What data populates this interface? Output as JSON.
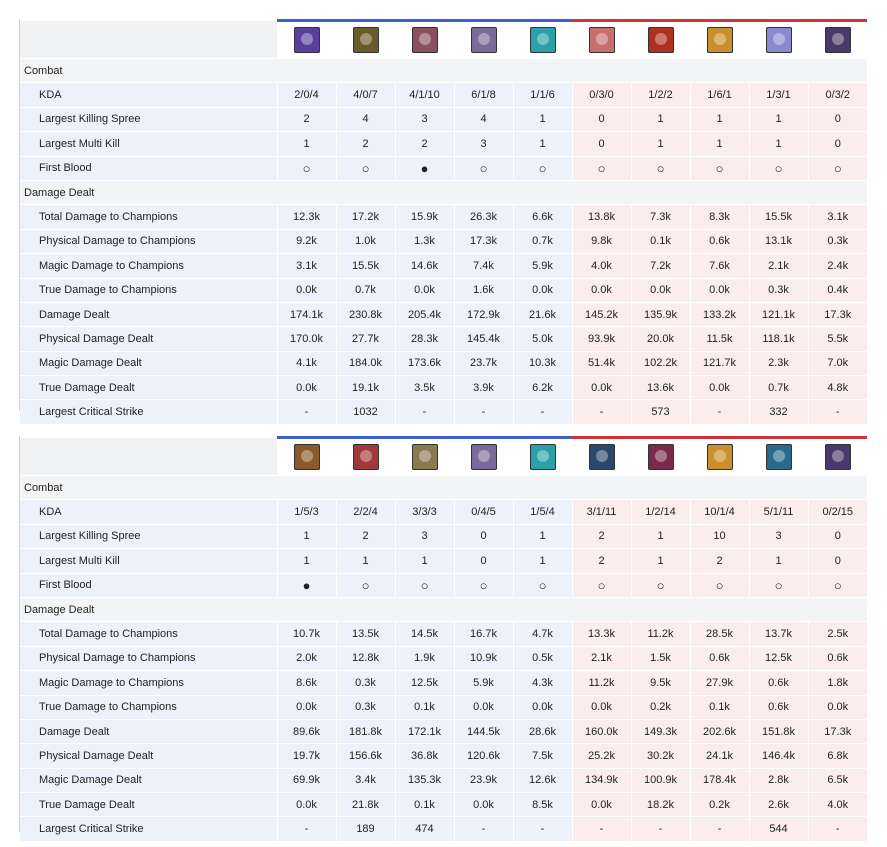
{
  "colors": {
    "blue_side": "#3d5fd0",
    "red_side": "#d0333b",
    "blue_cell": "#ecf1fa",
    "red_cell": "#fbeded",
    "section_bg": "#f3f4f6"
  },
  "first_blood_symbols": {
    "yes": "●",
    "no": "○"
  },
  "tables": [
    {
      "champion_icons": [
        {
          "icon": "champion-portrait-icon",
          "color": "#5a3f9e",
          "side": "blue"
        },
        {
          "icon": "champion-portrait-icon",
          "color": "#6b5a2a",
          "side": "blue"
        },
        {
          "icon": "champion-portrait-icon",
          "color": "#8a5060",
          "side": "blue"
        },
        {
          "icon": "champion-portrait-icon",
          "color": "#7a6a9a",
          "side": "blue"
        },
        {
          "icon": "champion-portrait-icon",
          "color": "#2aa0a8",
          "side": "blue"
        },
        {
          "icon": "champion-portrait-icon",
          "color": "#c87070",
          "side": "red"
        },
        {
          "icon": "champion-portrait-icon",
          "color": "#b03020",
          "side": "red"
        },
        {
          "icon": "champion-portrait-icon",
          "color": "#c8902a",
          "side": "red"
        },
        {
          "icon": "champion-portrait-icon",
          "color": "#8a8ad0",
          "side": "red"
        },
        {
          "icon": "champion-portrait-icon",
          "color": "#4a3a6a",
          "side": "red"
        }
      ],
      "sections": [
        {
          "title": "Combat",
          "rows": [
            {
              "label": "KDA",
              "values": [
                "2/0/4",
                "4/0/7",
                "4/1/10",
                "6/1/8",
                "1/1/6",
                "0/3/0",
                "1/2/2",
                "1/6/1",
                "1/3/1",
                "0/3/2"
              ]
            },
            {
              "label": "Largest Killing Spree",
              "values": [
                "2",
                "4",
                "3",
                "4",
                "1",
                "0",
                "1",
                "1",
                "1",
                "0"
              ]
            },
            {
              "label": "Largest Multi Kill",
              "values": [
                "1",
                "2",
                "2",
                "3",
                "1",
                "0",
                "1",
                "1",
                "1",
                "0"
              ]
            },
            {
              "label": "First Blood",
              "values": [
                "○",
                "○",
                "●",
                "○",
                "○",
                "○",
                "○",
                "○",
                "○",
                "○"
              ]
            }
          ]
        },
        {
          "title": "Damage Dealt",
          "rows": [
            {
              "label": "Total Damage to Champions",
              "values": [
                "12.3k",
                "17.2k",
                "15.9k",
                "26.3k",
                "6.6k",
                "13.8k",
                "7.3k",
                "8.3k",
                "15.5k",
                "3.1k"
              ]
            },
            {
              "label": "Physical Damage to Champions",
              "values": [
                "9.2k",
                "1.0k",
                "1.3k",
                "17.3k",
                "0.7k",
                "9.8k",
                "0.1k",
                "0.6k",
                "13.1k",
                "0.3k"
              ]
            },
            {
              "label": "Magic Damage to Champions",
              "values": [
                "3.1k",
                "15.5k",
                "14.6k",
                "7.4k",
                "5.9k",
                "4.0k",
                "7.2k",
                "7.6k",
                "2.1k",
                "2.4k"
              ]
            },
            {
              "label": "True Damage to Champions",
              "values": [
                "0.0k",
                "0.7k",
                "0.0k",
                "1.6k",
                "0.0k",
                "0.0k",
                "0.0k",
                "0.0k",
                "0.3k",
                "0.4k"
              ]
            },
            {
              "label": "Damage Dealt",
              "values": [
                "174.1k",
                "230.8k",
                "205.4k",
                "172.9k",
                "21.6k",
                "145.2k",
                "135.9k",
                "133.2k",
                "121.1k",
                "17.3k"
              ]
            },
            {
              "label": "Physical Damage Dealt",
              "values": [
                "170.0k",
                "27.7k",
                "28.3k",
                "145.4k",
                "5.0k",
                "93.9k",
                "20.0k",
                "11.5k",
                "118.1k",
                "5.5k"
              ]
            },
            {
              "label": "Magic Damage Dealt",
              "values": [
                "4.1k",
                "184.0k",
                "173.6k",
                "23.7k",
                "10.3k",
                "51.4k",
                "102.2k",
                "121.7k",
                "2.3k",
                "7.0k"
              ]
            },
            {
              "label": "True Damage Dealt",
              "values": [
                "0.0k",
                "19.1k",
                "3.5k",
                "3.9k",
                "6.2k",
                "0.0k",
                "13.6k",
                "0.0k",
                "0.7k",
                "4.8k"
              ]
            },
            {
              "label": "Largest Critical Strike",
              "values": [
                "-",
                "1032",
                "-",
                "-",
                "-",
                "-",
                "573",
                "-",
                "332",
                "-"
              ]
            }
          ]
        }
      ]
    },
    {
      "champion_icons": [
        {
          "icon": "champion-portrait-icon",
          "color": "#8a5a2a",
          "side": "blue"
        },
        {
          "icon": "champion-portrait-icon",
          "color": "#a03a3a",
          "side": "blue"
        },
        {
          "icon": "champion-portrait-icon",
          "color": "#8a7a50",
          "side": "blue"
        },
        {
          "icon": "champion-portrait-icon",
          "color": "#7a6a9a",
          "side": "blue"
        },
        {
          "icon": "champion-portrait-icon",
          "color": "#2aa0a8",
          "side": "blue"
        },
        {
          "icon": "champion-portrait-icon",
          "color": "#2a4a6a",
          "side": "red"
        },
        {
          "icon": "champion-portrait-icon",
          "color": "#7a2a4a",
          "side": "red"
        },
        {
          "icon": "champion-portrait-icon",
          "color": "#c8902a",
          "side": "red"
        },
        {
          "icon": "champion-portrait-icon",
          "color": "#2a6a8a",
          "side": "red"
        },
        {
          "icon": "champion-portrait-icon",
          "color": "#4a3a6a",
          "side": "red"
        }
      ],
      "sections": [
        {
          "title": "Combat",
          "rows": [
            {
              "label": "KDA",
              "values": [
                "1/5/3",
                "2/2/4",
                "3/3/3",
                "0/4/5",
                "1/5/4",
                "3/1/11",
                "1/2/14",
                "10/1/4",
                "5/1/11",
                "0/2/15"
              ]
            },
            {
              "label": "Largest Killing Spree",
              "values": [
                "1",
                "2",
                "3",
                "0",
                "1",
                "2",
                "1",
                "10",
                "3",
                "0"
              ]
            },
            {
              "label": "Largest Multi Kill",
              "values": [
                "1",
                "1",
                "1",
                "0",
                "1",
                "2",
                "1",
                "2",
                "1",
                "0"
              ]
            },
            {
              "label": "First Blood",
              "values": [
                "●",
                "○",
                "○",
                "○",
                "○",
                "○",
                "○",
                "○",
                "○",
                "○"
              ]
            }
          ]
        },
        {
          "title": "Damage Dealt",
          "rows": [
            {
              "label": "Total Damage to Champions",
              "values": [
                "10.7k",
                "13.5k",
                "14.5k",
                "16.7k",
                "4.7k",
                "13.3k",
                "11.2k",
                "28.5k",
                "13.7k",
                "2.5k"
              ]
            },
            {
              "label": "Physical Damage to Champions",
              "values": [
                "2.0k",
                "12.8k",
                "1.9k",
                "10.9k",
                "0.5k",
                "2.1k",
                "1.5k",
                "0.6k",
                "12.5k",
                "0.6k"
              ]
            },
            {
              "label": "Magic Damage to Champions",
              "values": [
                "8.6k",
                "0.3k",
                "12.5k",
                "5.9k",
                "4.3k",
                "11.2k",
                "9.5k",
                "27.9k",
                "0.6k",
                "1.8k"
              ]
            },
            {
              "label": "True Damage to Champions",
              "values": [
                "0.0k",
                "0.3k",
                "0.1k",
                "0.0k",
                "0.0k",
                "0.0k",
                "0.2k",
                "0.1k",
                "0.6k",
                "0.0k"
              ]
            },
            {
              "label": "Damage Dealt",
              "values": [
                "89.6k",
                "181.8k",
                "172.1k",
                "144.5k",
                "28.6k",
                "160.0k",
                "149.3k",
                "202.6k",
                "151.8k",
                "17.3k"
              ]
            },
            {
              "label": "Physical Damage Dealt",
              "values": [
                "19.7k",
                "156.6k",
                "36.8k",
                "120.6k",
                "7.5k",
                "25.2k",
                "30.2k",
                "24.1k",
                "146.4k",
                "6.8k"
              ]
            },
            {
              "label": "Magic Damage Dealt",
              "values": [
                "69.9k",
                "3.4k",
                "135.3k",
                "23.9k",
                "12.6k",
                "134.9k",
                "100.9k",
                "178.4k",
                "2.8k",
                "6.5k"
              ]
            },
            {
              "label": "True Damage Dealt",
              "values": [
                "0.0k",
                "21.8k",
                "0.1k",
                "0.0k",
                "8.5k",
                "0.0k",
                "18.2k",
                "0.2k",
                "2.6k",
                "4.0k"
              ]
            },
            {
              "label": "Largest Critical Strike",
              "values": [
                "-",
                "189",
                "474",
                "-",
                "-",
                "-",
                "-",
                "-",
                "544",
                "-"
              ]
            }
          ]
        }
      ]
    }
  ]
}
